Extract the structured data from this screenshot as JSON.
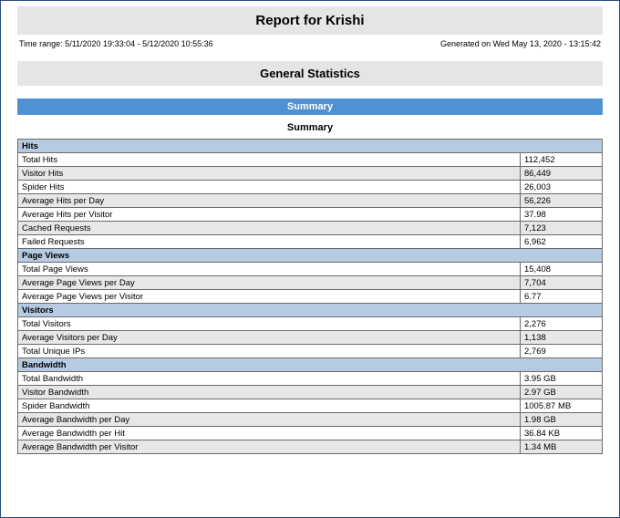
{
  "report": {
    "title": "Report for Krishi",
    "time_range": "Time range: 5/11/2020 19:33:04 - 5/12/2020 10:55:36",
    "generated": "Generated on Wed May 13, 2020 - 13:15:42",
    "section_title": "General Statistics",
    "summary_bar": "Summary",
    "summary_sub": "Summary"
  },
  "colors": {
    "header_bg": "#e5e5e5",
    "summary_bar_bg": "#4f91d2",
    "group_header_bg": "#b6cbe1",
    "stripe_bg": "#e7e7e7",
    "border": "#6a6a6a",
    "page_border": "#2a4b7c"
  },
  "groups": {
    "hits": {
      "header": "Hits",
      "rows": [
        {
          "label": "Total Hits",
          "value": "112,452"
        },
        {
          "label": "Visitor Hits",
          "value": "86,449"
        },
        {
          "label": "Spider Hits",
          "value": "26,003"
        },
        {
          "label": "Average Hits per Day",
          "value": "56,226"
        },
        {
          "label": "Average Hits per Visitor",
          "value": "37.98"
        },
        {
          "label": "Cached Requests",
          "value": "7,123"
        },
        {
          "label": "Failed Requests",
          "value": "6,962"
        }
      ]
    },
    "page_views": {
      "header": "Page Views",
      "rows": [
        {
          "label": "Total Page Views",
          "value": "15,408"
        },
        {
          "label": "Average Page Views per Day",
          "value": "7,704"
        },
        {
          "label": "Average Page Views per Visitor",
          "value": "6.77"
        }
      ]
    },
    "visitors": {
      "header": "Visitors",
      "rows": [
        {
          "label": "Total Visitors",
          "value": "2,276"
        },
        {
          "label": "Average Visitors per Day",
          "value": "1,138"
        },
        {
          "label": "Total Unique IPs",
          "value": "2,769"
        }
      ]
    },
    "bandwidth": {
      "header": "Bandwidth",
      "rows": [
        {
          "label": "Total Bandwidth",
          "value": "3.95 GB"
        },
        {
          "label": "Visitor Bandwidth",
          "value": "2.97 GB"
        },
        {
          "label": "Spider Bandwidth",
          "value": "1005.87 MB"
        },
        {
          "label": "Average Bandwidth per Day",
          "value": "1.98 GB"
        },
        {
          "label": "Average Bandwidth per Hit",
          "value": "36.84 KB"
        },
        {
          "label": "Average Bandwidth per Visitor",
          "value": "1.34 MB"
        }
      ]
    }
  }
}
